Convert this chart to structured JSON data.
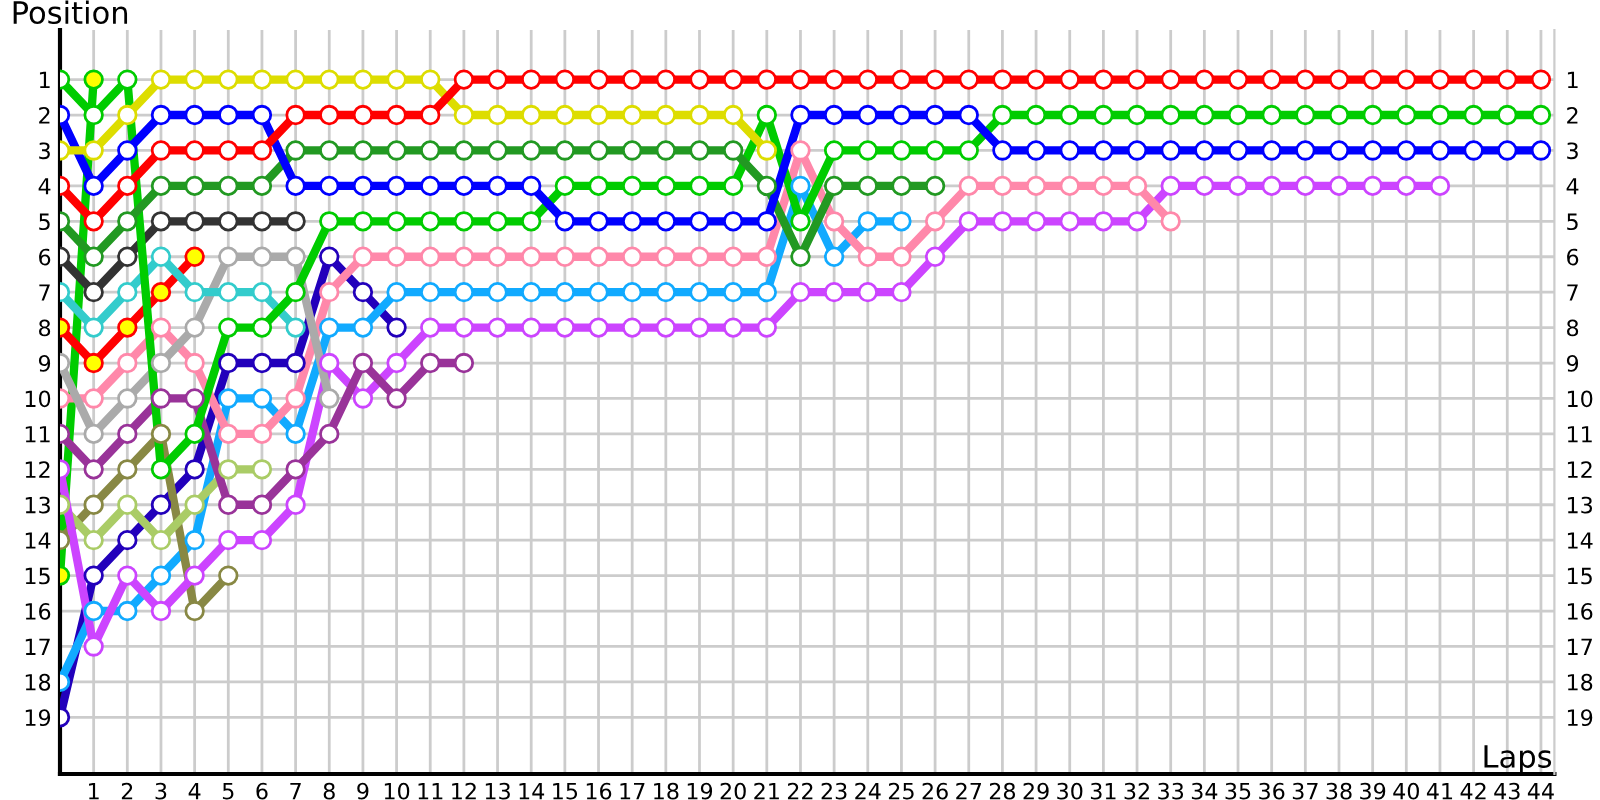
{
  "chart_data": {
    "type": "line",
    "xlabel": "Laps",
    "ylabel": "Position",
    "x": [
      0,
      1,
      2,
      3,
      4,
      5,
      6,
      7,
      8,
      9,
      10,
      11,
      12,
      13,
      14,
      15,
      16,
      17,
      18,
      19,
      20,
      21,
      22,
      23,
      24,
      25,
      26,
      27,
      28,
      29,
      30,
      31,
      32,
      33,
      34,
      35,
      36,
      37,
      38,
      39,
      40,
      41,
      42,
      43,
      44
    ],
    "xlim": [
      0,
      44.4
    ],
    "xticks": [
      1,
      2,
      3,
      4,
      5,
      6,
      7,
      8,
      9,
      10,
      11,
      12,
      13,
      14,
      15,
      16,
      17,
      18,
      19,
      20,
      21,
      22,
      23,
      24,
      25,
      26,
      27,
      28,
      29,
      30,
      31,
      32,
      33,
      34,
      35,
      36,
      37,
      38,
      39,
      40,
      41,
      42,
      43,
      44
    ],
    "ylim": [
      20.6,
      -0.4
    ],
    "yticks": [
      1,
      2,
      3,
      4,
      5,
      6,
      7,
      8,
      9,
      10,
      11,
      12,
      13,
      14,
      15,
      16,
      17,
      18,
      19
    ],
    "y2lim": [
      20.6,
      -0.4
    ],
    "y2ticks": [
      1,
      2,
      3,
      4,
      5,
      6,
      7,
      8,
      9,
      10,
      11,
      12,
      13,
      14,
      15,
      16,
      17,
      18,
      19
    ],
    "grid": true,
    "marker": "circle",
    "line_style": "solid",
    "series": [
      {
        "color": "#ff0000",
        "values": [
          4,
          5,
          4,
          3,
          3,
          3,
          3,
          2,
          2,
          2,
          2,
          2,
          1,
          1,
          1,
          1,
          1,
          1,
          1,
          1,
          1,
          1,
          1,
          1,
          1,
          1,
          1,
          1,
          1,
          1,
          1,
          1,
          1,
          1,
          1,
          1,
          1,
          1,
          1,
          1,
          1,
          1,
          1,
          1,
          1
        ]
      },
      {
        "color": "#dddd00",
        "values": [
          3,
          3,
          2,
          1,
          1,
          1,
          1,
          1,
          1,
          1,
          1,
          1,
          2,
          2,
          2,
          2,
          2,
          2,
          2,
          2,
          2,
          3,
          null,
          null,
          null,
          null,
          null,
          null,
          null,
          null,
          null,
          null,
          null,
          null,
          null,
          null,
          null,
          null,
          null,
          null,
          null,
          null,
          null,
          null,
          null
        ]
      },
      {
        "color": "#0000ff",
        "values": [
          2,
          4,
          3,
          2,
          2,
          2,
          2,
          4,
          4,
          4,
          4,
          4,
          4,
          4,
          4,
          5,
          5,
          5,
          5,
          5,
          5,
          5,
          2,
          2,
          2,
          2,
          2,
          2,
          3,
          3,
          3,
          3,
          3,
          3,
          3,
          3,
          3,
          3,
          3,
          3,
          3,
          3,
          3,
          3,
          3
        ]
      },
      {
        "color": "#229922",
        "values": [
          5,
          6,
          5,
          4,
          4,
          4,
          4,
          3,
          3,
          3,
          3,
          3,
          3,
          3,
          3,
          3,
          3,
          3,
          3,
          3,
          3,
          4,
          6,
          4,
          4,
          4,
          4,
          null,
          null,
          null,
          null,
          null,
          null,
          null,
          null,
          null,
          null,
          null,
          null,
          null,
          null,
          null,
          null,
          null,
          null
        ]
      },
      {
        "color": "#00cc00",
        "values": [
          1,
          2,
          1,
          12,
          11,
          8,
          8,
          7,
          5,
          5,
          5,
          5,
          5,
          5,
          5,
          4,
          4,
          4,
          4,
          4,
          4,
          2,
          5,
          3,
          3,
          3,
          3,
          3,
          2,
          2,
          2,
          2,
          2,
          2,
          2,
          2,
          2,
          2,
          2,
          2,
          2,
          2,
          2,
          2,
          2
        ]
      },
      {
        "color": "#333333",
        "values": [
          6,
          7,
          6,
          5,
          5,
          5,
          5,
          5,
          null,
          null,
          null,
          null,
          null,
          null,
          null,
          null,
          null,
          null,
          null,
          null,
          null,
          null,
          null,
          null,
          null,
          null,
          null,
          null,
          null,
          null,
          null,
          null,
          null,
          null,
          null,
          null,
          null,
          null,
          null,
          null,
          null,
          null,
          null,
          null,
          null
        ]
      },
      {
        "color": "#33cccc",
        "values": [
          7,
          8,
          7,
          6,
          7,
          7,
          7,
          8,
          null,
          null,
          null,
          null,
          null,
          null,
          null,
          null,
          null,
          null,
          null,
          null,
          null,
          null,
          null,
          null,
          null,
          null,
          null,
          null,
          null,
          null,
          null,
          null,
          null,
          null,
          null,
          null,
          null,
          null,
          null,
          null,
          null,
          null,
          null,
          null,
          null
        ]
      },
      {
        "color": "#ff0000",
        "colors": [
          "#ffff00",
          "#ffff00",
          "#ffff00",
          "#ffff00",
          "#ffff00",
          null,
          null,
          null,
          null,
          null,
          null,
          null,
          null,
          null,
          null,
          null,
          null,
          null,
          null,
          null,
          null,
          null,
          null,
          null,
          null,
          null,
          null,
          null,
          null,
          null,
          null,
          null,
          null,
          null,
          null,
          null,
          null,
          null,
          null,
          null,
          null,
          null,
          null,
          null,
          null
        ],
        "values": [
          8,
          9,
          8,
          7,
          6,
          null,
          null,
          null,
          null,
          null,
          null,
          null,
          null,
          null,
          null,
          null,
          null,
          null,
          null,
          null,
          null,
          null,
          null,
          null,
          null,
          null,
          null,
          null,
          null,
          null,
          null,
          null,
          null,
          null,
          null,
          null,
          null,
          null,
          null,
          null,
          null,
          null,
          null,
          null,
          null
        ]
      },
      {
        "color": "#aaaaaa",
        "values": [
          9,
          11,
          10,
          9,
          8,
          6,
          6,
          6,
          10,
          null,
          null,
          null,
          null,
          null,
          null,
          null,
          null,
          null,
          null,
          null,
          null,
          null,
          null,
          null,
          null,
          null,
          null,
          null,
          null,
          null,
          null,
          null,
          null,
          null,
          null,
          null,
          null,
          null,
          null,
          null,
          null,
          null,
          null,
          null,
          null
        ]
      },
      {
        "color": "#ff88aa",
        "values": [
          10,
          10,
          9,
          8,
          9,
          11,
          11,
          10,
          7,
          6,
          6,
          6,
          6,
          6,
          6,
          6,
          6,
          6,
          6,
          6,
          6,
          6,
          3,
          5,
          6,
          6,
          5,
          4,
          4,
          4,
          4,
          4,
          4,
          5,
          null,
          null,
          null,
          null,
          null,
          null,
          null,
          null,
          null,
          null,
          null
        ]
      },
      {
        "color": "#993399",
        "values": [
          11,
          12,
          11,
          10,
          10,
          13,
          13,
          12,
          11,
          9,
          10,
          9,
          9,
          null,
          null,
          null,
          null,
          null,
          null,
          null,
          null,
          null,
          null,
          null,
          null,
          null,
          null,
          null,
          null,
          null,
          null,
          null,
          null,
          null,
          null,
          null,
          null,
          null,
          null,
          null,
          null,
          null,
          null,
          null,
          null
        ]
      },
      {
        "color": "#cc44ff",
        "values": [
          12,
          17,
          15,
          16,
          15,
          14,
          14,
          13,
          9,
          10,
          9,
          8,
          8,
          8,
          8,
          8,
          8,
          8,
          8,
          8,
          8,
          8,
          7,
          7,
          7,
          7,
          6,
          5,
          5,
          5,
          5,
          5,
          5,
          4,
          4,
          4,
          4,
          4,
          4,
          4,
          4,
          4,
          null,
          null,
          null
        ]
      },
      {
        "color": "#aacc66",
        "values": [
          13,
          14,
          13,
          14,
          13,
          12,
          12,
          null,
          null,
          null,
          null,
          null,
          null,
          null,
          null,
          null,
          null,
          null,
          null,
          null,
          null,
          null,
          null,
          null,
          null,
          null,
          null,
          null,
          null,
          null,
          null,
          null,
          null,
          null,
          null,
          null,
          null,
          null,
          null,
          null,
          null,
          null,
          null,
          null,
          null
        ]
      },
      {
        "color": "#888844",
        "values": [
          14,
          13,
          12,
          11,
          16,
          15,
          null,
          null,
          null,
          null,
          null,
          null,
          null,
          null,
          null,
          null,
          null,
          null,
          null,
          null,
          null,
          null,
          null,
          null,
          null,
          null,
          null,
          null,
          null,
          null,
          null,
          null,
          null,
          null,
          null,
          null,
          null,
          null,
          null,
          null,
          null,
          null,
          null,
          null,
          null
        ]
      },
      {
        "color": "#00cc00",
        "colors": [
          "#ffff00",
          "#ffff00",
          null,
          null,
          null,
          null,
          null,
          null,
          null,
          null,
          null,
          null,
          null,
          null,
          null,
          null,
          null,
          null,
          null,
          null,
          null,
          null,
          null,
          null,
          null,
          null,
          null,
          null,
          null,
          null,
          null,
          null,
          null,
          null,
          null,
          null,
          null,
          null,
          null,
          null,
          null,
          null,
          null,
          null,
          null
        ],
        "values": [
          15,
          1,
          null,
          null,
          null,
          null,
          null,
          null,
          null,
          null,
          null,
          null,
          null,
          null,
          null,
          null,
          null,
          null,
          null,
          null,
          null,
          null,
          null,
          null,
          null,
          null,
          null,
          null,
          null,
          null,
          null,
          null,
          null,
          null,
          null,
          null,
          null,
          null,
          null,
          null,
          null,
          null,
          null,
          null,
          null
        ]
      },
      {
        "color": "#11aaff",
        "values": [
          18,
          16,
          16,
          15,
          14,
          10,
          10,
          11,
          8,
          8,
          7,
          7,
          7,
          7,
          7,
          7,
          7,
          7,
          7,
          7,
          7,
          7,
          4,
          6,
          5,
          5,
          null,
          null,
          null,
          null,
          null,
          null,
          null,
          null,
          null,
          null,
          null,
          null,
          null,
          null,
          null,
          null,
          null,
          null,
          null
        ]
      },
      {
        "color": "#2200bb",
        "values": [
          19,
          15,
          14,
          13,
          12,
          9,
          9,
          9,
          6,
          7,
          8,
          null,
          null,
          null,
          null,
          null,
          null,
          null,
          null,
          null,
          null,
          null,
          null,
          null,
          null,
          null,
          null,
          null,
          null,
          null,
          null,
          null,
          null,
          null,
          null,
          null,
          null,
          null,
          null,
          null,
          null,
          null,
          null,
          null,
          null
        ]
      }
    ]
  }
}
